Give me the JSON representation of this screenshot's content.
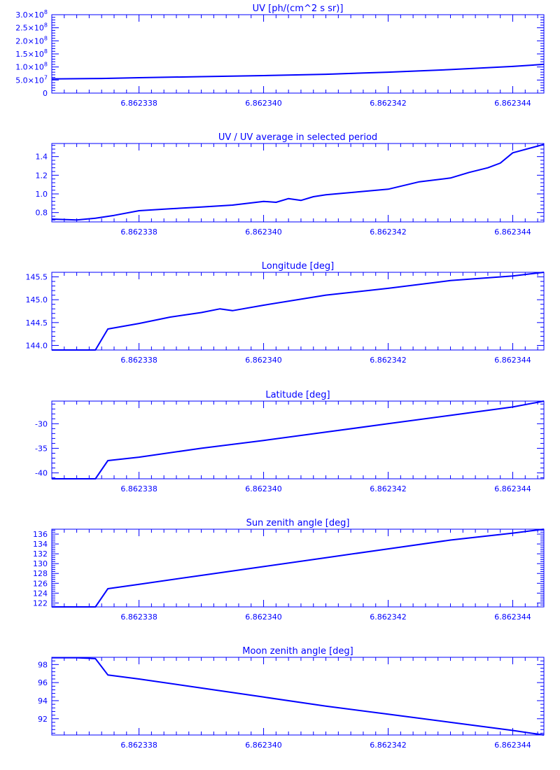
{
  "style": {
    "line_color": "#0000ff",
    "background": "#ffffff"
  },
  "x_axis": {
    "ticks": [
      6.862338,
      6.86234,
      6.862342,
      6.862344
    ],
    "tick_labels": [
      "6.862338",
      "6.862340",
      "6.862342",
      "6.862344"
    ],
    "xlim": [
      6.8623366,
      6.8623445
    ]
  },
  "chart_data": [
    {
      "type": "line",
      "title": "UV [ph/(cm^2 s sr)]",
      "ylim": [
        0,
        300000000
      ],
      "ytick_values": [
        0,
        50000000,
        100000000,
        150000000,
        200000000,
        250000000,
        300000000
      ],
      "ytick_labels": [
        {
          "mantissa": "0",
          "exp": ""
        },
        {
          "mantissa": "5.0×10",
          "exp": "7"
        },
        {
          "mantissa": "1.0×10",
          "exp": "8"
        },
        {
          "mantissa": "1.5×10",
          "exp": "8"
        },
        {
          "mantissa": "2.0×10",
          "exp": "8"
        },
        {
          "mantissa": "2.5×10",
          "exp": "8"
        },
        {
          "mantissa": "3.0×10",
          "exp": "8"
        }
      ],
      "x": [
        6.8623366,
        6.8623374,
        6.862338,
        6.862339,
        6.86234,
        6.862341,
        6.862342,
        6.862343,
        6.862344,
        6.8623445
      ],
      "y": [
        54000000,
        56000000,
        59000000,
        63000000,
        67000000,
        72000000,
        80000000,
        90000000,
        102000000,
        110000000
      ]
    },
    {
      "type": "line",
      "title": "UV / UV average in selected period",
      "ylim": [
        0.7,
        1.54
      ],
      "ytick_values": [
        0.8,
        1.0,
        1.2,
        1.4
      ],
      "ytick_labels": [
        {
          "mantissa": "0.8",
          "exp": ""
        },
        {
          "mantissa": "1.0",
          "exp": ""
        },
        {
          "mantissa": "1.2",
          "exp": ""
        },
        {
          "mantissa": "1.4",
          "exp": ""
        }
      ],
      "x": [
        6.8623366,
        6.862337,
        6.8623373,
        6.8623376,
        6.862338,
        6.8623385,
        6.862339,
        6.8623395,
        6.86234,
        6.8623402,
        6.8623404,
        6.8623406,
        6.8623408,
        6.862341,
        6.8623415,
        6.862342,
        6.8623425,
        6.862343,
        6.8623433,
        6.8623436,
        6.8623438,
        6.862344,
        6.8623445
      ],
      "y": [
        0.73,
        0.72,
        0.74,
        0.77,
        0.82,
        0.84,
        0.86,
        0.88,
        0.92,
        0.91,
        0.95,
        0.93,
        0.97,
        0.99,
        1.02,
        1.05,
        1.13,
        1.17,
        1.23,
        1.28,
        1.33,
        1.44,
        1.53
      ]
    },
    {
      "type": "line",
      "title": "Longitude [deg]",
      "ylim": [
        143.9,
        145.6
      ],
      "ytick_values": [
        144.0,
        144.5,
        145.0,
        145.5
      ],
      "ytick_labels": [
        {
          "mantissa": "144.0",
          "exp": ""
        },
        {
          "mantissa": "144.5",
          "exp": ""
        },
        {
          "mantissa": "145.0",
          "exp": ""
        },
        {
          "mantissa": "145.5",
          "exp": ""
        }
      ],
      "x": [
        6.8623366,
        6.8623373,
        6.8623375,
        6.862338,
        6.8623385,
        6.862339,
        6.8623393,
        6.8623395,
        6.86234,
        6.862341,
        6.862342,
        6.862343,
        6.862344,
        6.8623445
      ],
      "y": [
        143.9,
        143.9,
        144.36,
        144.48,
        144.62,
        144.72,
        144.8,
        144.76,
        144.88,
        145.1,
        145.25,
        145.42,
        145.52,
        145.6
      ]
    },
    {
      "type": "line",
      "title": "Latitude [deg]",
      "ylim": [
        -41.2,
        -25.4
      ],
      "ytick_values": [
        -40,
        -35,
        -30
      ],
      "ytick_labels": [
        {
          "mantissa": "-40",
          "exp": ""
        },
        {
          "mantissa": "-35",
          "exp": ""
        },
        {
          "mantissa": "-30",
          "exp": ""
        }
      ],
      "x": [
        6.8623366,
        6.8623373,
        6.8623375,
        6.862338,
        6.862339,
        6.86234,
        6.862341,
        6.862342,
        6.862343,
        6.862344,
        6.8623445
      ],
      "y": [
        -41.2,
        -41.2,
        -37.5,
        -36.8,
        -35.0,
        -33.4,
        -31.7,
        -30.0,
        -28.3,
        -26.6,
        -25.4
      ]
    },
    {
      "type": "line",
      "title": "Sun zenith angle [deg]",
      "ylim": [
        121.2,
        137.0
      ],
      "ytick_values": [
        122,
        124,
        126,
        128,
        130,
        132,
        134,
        136
      ],
      "ytick_labels": [
        {
          "mantissa": "122",
          "exp": ""
        },
        {
          "mantissa": "124",
          "exp": ""
        },
        {
          "mantissa": "126",
          "exp": ""
        },
        {
          "mantissa": "128",
          "exp": ""
        },
        {
          "mantissa": "130",
          "exp": ""
        },
        {
          "mantissa": "132",
          "exp": ""
        },
        {
          "mantissa": "134",
          "exp": ""
        },
        {
          "mantissa": "136",
          "exp": ""
        }
      ],
      "x": [
        6.8623366,
        6.8623373,
        6.8623375,
        6.862338,
        6.862339,
        6.86234,
        6.862341,
        6.862342,
        6.862343,
        6.862344,
        6.8623445
      ],
      "y": [
        121.2,
        121.2,
        124.9,
        125.8,
        127.6,
        129.4,
        131.2,
        133.0,
        134.8,
        136.2,
        137.0
      ]
    },
    {
      "type": "line",
      "title": "Moon zenith angle [deg]",
      "ylim": [
        90.2,
        98.8
      ],
      "ytick_values": [
        92,
        94,
        96,
        98
      ],
      "ytick_labels": [
        {
          "mantissa": "92",
          "exp": ""
        },
        {
          "mantissa": "94",
          "exp": ""
        },
        {
          "mantissa": "96",
          "exp": ""
        },
        {
          "mantissa": "98",
          "exp": ""
        }
      ],
      "x": [
        6.8623366,
        6.862337,
        6.8623373,
        6.8623375,
        6.862338,
        6.862339,
        6.86234,
        6.862341,
        6.862342,
        6.862343,
        6.862344,
        6.8623445
      ],
      "y": [
        98.75,
        98.75,
        98.65,
        96.85,
        96.4,
        95.4,
        94.4,
        93.4,
        92.5,
        91.6,
        90.7,
        90.2
      ]
    }
  ]
}
